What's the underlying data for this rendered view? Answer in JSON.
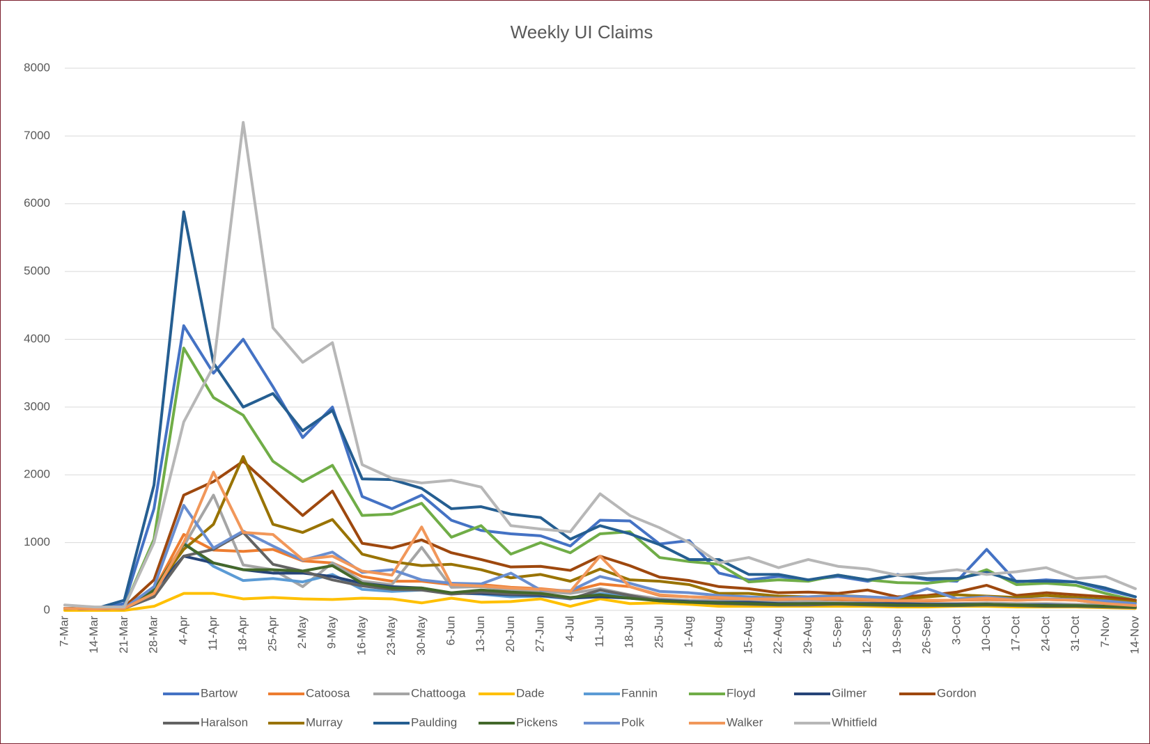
{
  "chart_data": {
    "type": "line",
    "title": "Weekly UI Claims",
    "categories": [
      "7-Mar",
      "14-Mar",
      "21-Mar",
      "28-Mar",
      "4-Apr",
      "11-Apr",
      "18-Apr",
      "25-Apr",
      "2-May",
      "9-May",
      "16-May",
      "23-May",
      "30-May",
      "6-Jun",
      "13-Jun",
      "20-Jun",
      "27-Jun",
      "4-Jul",
      "11-Jul",
      "18-Jul",
      "25-Jul",
      "1-Aug",
      "8-Aug",
      "15-Aug",
      "22-Aug",
      "29-Aug",
      "5-Sep",
      "12-Sep",
      "19-Sep",
      "26-Sep",
      "3-Oct",
      "10-Oct",
      "17-Oct",
      "24-Oct",
      "31-Oct",
      "7-Nov",
      "14-Nov"
    ],
    "ylim": [
      0,
      8000
    ],
    "yticks": [
      0,
      1000,
      2000,
      3000,
      4000,
      5000,
      6000,
      7000,
      8000
    ],
    "grid": true,
    "legend": "bottom",
    "series": [
      {
        "name": "Bartow",
        "color": "#4472C4",
        "values": [
          30,
          20,
          100,
          1500,
          4200,
          3500,
          4000,
          3300,
          2550,
          3000,
          1680,
          1500,
          1700,
          1330,
          1180,
          1130,
          1100,
          950,
          1330,
          1320,
          980,
          1030,
          550,
          450,
          500,
          450,
          500,
          430,
          530,
          450,
          430,
          900,
          420,
          450,
          420,
          300,
          200
        ]
      },
      {
        "name": "Catoosa",
        "color": "#ED7D31",
        "values": [
          30,
          20,
          30,
          300,
          1120,
          890,
          870,
          900,
          730,
          700,
          500,
          430,
          430,
          380,
          380,
          340,
          320,
          280,
          390,
          350,
          220,
          200,
          180,
          160,
          160,
          170,
          160,
          150,
          140,
          140,
          150,
          160,
          150,
          160,
          150,
          100,
          70
        ]
      },
      {
        "name": "Chattooga",
        "color": "#A5A5A5",
        "values": [
          30,
          20,
          30,
          200,
          950,
          1700,
          670,
          600,
          350,
          700,
          430,
          380,
          930,
          340,
          350,
          300,
          280,
          250,
          320,
          230,
          170,
          150,
          140,
          130,
          120,
          130,
          120,
          110,
          100,
          100,
          100,
          110,
          100,
          100,
          90,
          80,
          60
        ]
      },
      {
        "name": "Dade",
        "color": "#FFC000",
        "values": [
          0,
          0,
          0,
          60,
          250,
          250,
          170,
          190,
          170,
          160,
          180,
          170,
          110,
          180,
          120,
          130,
          170,
          60,
          170,
          100,
          110,
          90,
          60,
          60,
          60,
          60,
          60,
          60,
          50,
          50,
          60,
          60,
          50,
          50,
          50,
          40,
          30
        ]
      },
      {
        "name": "Fannin",
        "color": "#5B9BD5",
        "values": [
          30,
          20,
          30,
          250,
          1000,
          650,
          440,
          470,
          420,
          530,
          310,
          280,
          300,
          260,
          240,
          200,
          210,
          170,
          250,
          200,
          150,
          130,
          110,
          100,
          90,
          90,
          100,
          90,
          80,
          80,
          80,
          90,
          80,
          80,
          70,
          60,
          50
        ]
      },
      {
        "name": "Floyd",
        "color": "#70AD47",
        "values": [
          30,
          20,
          50,
          1050,
          3870,
          3140,
          2880,
          2200,
          1900,
          2140,
          1400,
          1420,
          1580,
          1080,
          1250,
          830,
          1000,
          850,
          1130,
          1160,
          780,
          720,
          680,
          420,
          450,
          430,
          520,
          450,
          410,
          400,
          450,
          600,
          380,
          400,
          370,
          250,
          150
        ]
      },
      {
        "name": "Gilmer",
        "color": "#264478",
        "values": [
          30,
          20,
          50,
          300,
          800,
          700,
          600,
          550,
          550,
          500,
          400,
          350,
          330,
          250,
          250,
          230,
          220,
          180,
          200,
          180,
          150,
          130,
          120,
          120,
          100,
          100,
          100,
          100,
          100,
          90,
          90,
          90,
          80,
          80,
          70,
          60,
          50
        ]
      },
      {
        "name": "Gordon",
        "color": "#9E480E",
        "values": [
          30,
          20,
          50,
          450,
          1700,
          1900,
          2200,
          1800,
          1400,
          1760,
          990,
          920,
          1040,
          850,
          750,
          640,
          650,
          590,
          800,
          660,
          490,
          440,
          350,
          320,
          260,
          270,
          250,
          300,
          200,
          220,
          270,
          370,
          220,
          260,
          230,
          200,
          150
        ]
      },
      {
        "name": "Haralson",
        "color": "#636363",
        "values": [
          30,
          20,
          30,
          200,
          800,
          900,
          1150,
          680,
          580,
          450,
          360,
          310,
          300,
          240,
          270,
          240,
          240,
          170,
          300,
          220,
          140,
          120,
          100,
          90,
          80,
          80,
          90,
          80,
          70,
          70,
          70,
          80,
          70,
          60,
          60,
          50,
          40
        ]
      },
      {
        "name": "Murray",
        "color": "#997300",
        "values": [
          30,
          20,
          30,
          300,
          900,
          1270,
          2270,
          1270,
          1150,
          1340,
          830,
          720,
          660,
          680,
          600,
          480,
          530,
          430,
          610,
          450,
          430,
          380,
          250,
          250,
          210,
          200,
          220,
          200,
          160,
          200,
          230,
          210,
          190,
          220,
          190,
          160,
          120
        ]
      },
      {
        "name": "Paulding",
        "color": "#255E91",
        "values": [
          30,
          20,
          150,
          1850,
          5880,
          3650,
          3000,
          3200,
          2650,
          2950,
          1940,
          1930,
          1800,
          1500,
          1530,
          1420,
          1370,
          1050,
          1250,
          1130,
          970,
          750,
          750,
          530,
          530,
          450,
          520,
          450,
          520,
          470,
          470,
          560,
          430,
          430,
          420,
          330,
          200
        ]
      },
      {
        "name": "Pickens",
        "color": "#43682B",
        "values": [
          30,
          20,
          30,
          300,
          980,
          700,
          600,
          600,
          580,
          660,
          400,
          330,
          330,
          260,
          300,
          270,
          250,
          190,
          230,
          180,
          140,
          120,
          110,
          100,
          90,
          100,
          100,
          90,
          80,
          80,
          80,
          90,
          80,
          70,
          70,
          60,
          50
        ]
      },
      {
        "name": "Polk",
        "color": "#698ED0",
        "values": [
          30,
          20,
          30,
          350,
          1550,
          920,
          1170,
          950,
          740,
          860,
          560,
          600,
          450,
          400,
          390,
          550,
          300,
          290,
          500,
          400,
          280,
          260,
          220,
          200,
          180,
          200,
          210,
          200,
          180,
          320,
          170,
          200,
          160,
          170,
          160,
          140,
          100
        ]
      },
      {
        "name": "Walker",
        "color": "#F1975A",
        "values": [
          30,
          20,
          30,
          250,
          1000,
          2040,
          1150,
          1120,
          750,
          800,
          580,
          520,
          1230,
          380,
          360,
          330,
          310,
          280,
          800,
          350,
          230,
          200,
          190,
          170,
          170,
          170,
          180,
          160,
          140,
          150,
          150,
          180,
          150,
          160,
          150,
          100,
          70
        ]
      },
      {
        "name": "Whitfield",
        "color": "#B7B7B7",
        "values": [
          80,
          50,
          50,
          1000,
          2780,
          3600,
          7200,
          4170,
          3660,
          3950,
          2150,
          1950,
          1880,
          1920,
          1820,
          1250,
          1200,
          1160,
          1720,
          1400,
          1220,
          1000,
          700,
          780,
          630,
          750,
          650,
          610,
          520,
          550,
          600,
          530,
          570,
          630,
          470,
          500,
          320
        ]
      }
    ]
  }
}
